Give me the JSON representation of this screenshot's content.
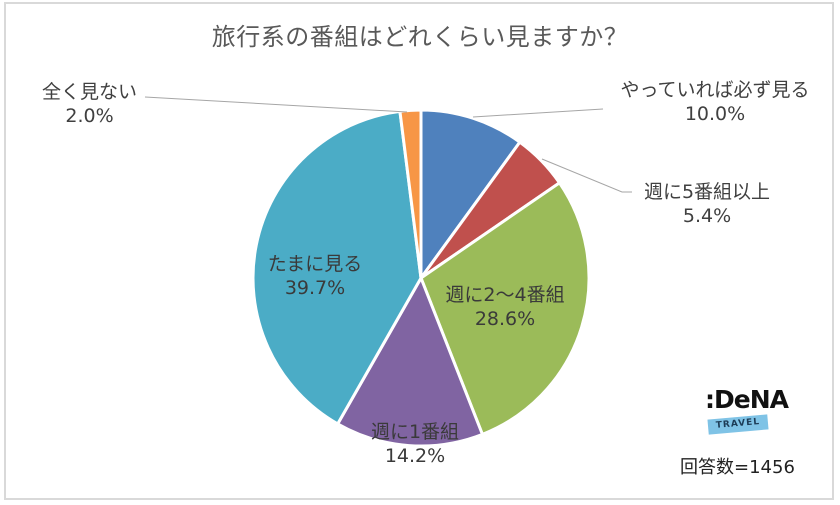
{
  "title": "旅行系の番組はどれくらい見ますか？",
  "chart_data": {
    "type": "pie",
    "title": "旅行系の番組はどれくらい見ますか？",
    "start_angle": "12 o'clock",
    "direction": "clockwise",
    "categories": [
      "やっていれば必ず見る",
      "週に5番組以上",
      "週に2～4番組",
      "週に1番組",
      "たまに見る",
      "全く見ない"
    ],
    "values": [
      10.0,
      5.4,
      28.6,
      14.2,
      39.7,
      2.0
    ],
    "unit": "%",
    "colors": [
      "#4f81bd",
      "#c0504d",
      "#9bbb59",
      "#8064a2",
      "#4bacc6",
      "#f79646"
    ],
    "labels": [
      "10.0%",
      "5.4%",
      "28.6%",
      "14.2%",
      "39.7%",
      "2.0%"
    ],
    "legend": "none (data labels with leader lines)"
  },
  "labels": {
    "s0": {
      "name": "やっていれば必ず見る",
      "pct": "10.0%"
    },
    "s1": {
      "name": "週に5番組以上",
      "pct": "5.4%"
    },
    "s2": {
      "name": "週に2～4番組",
      "pct": "28.6%"
    },
    "s3": {
      "name": "週に1番組",
      "pct": "14.2%"
    },
    "s4": {
      "name": "たまに見る",
      "pct": "39.7%"
    },
    "s5": {
      "name": "全く見ない",
      "pct": "2.0%"
    }
  },
  "logo": {
    "word": ":DeNA",
    "sub": "TRAVEL"
  },
  "footer": {
    "count": "回答数=1456"
  }
}
